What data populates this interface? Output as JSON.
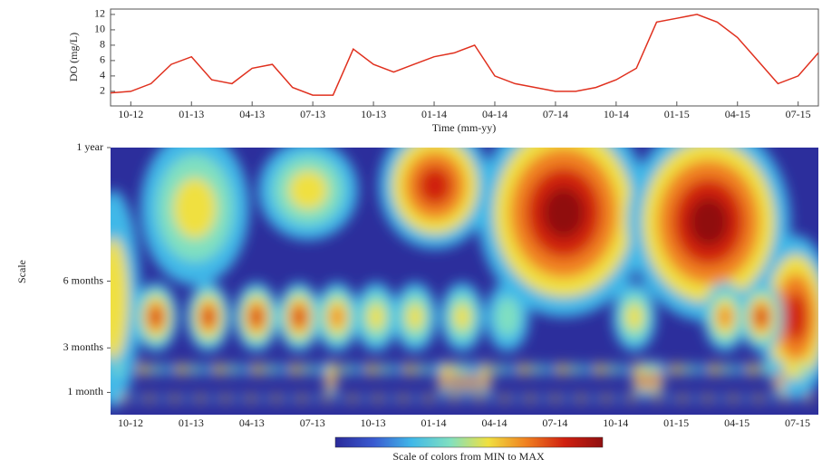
{
  "chart_data": [
    {
      "type": "line",
      "y_label": "DO (mg/L)",
      "x_label": "Time (mm-yy)",
      "categories": [
        "09-12",
        "10-12",
        "11-12",
        "12-12",
        "01-13",
        "02-13",
        "03-13",
        "04-13",
        "05-13",
        "06-13",
        "07-13",
        "08-13",
        "09-13",
        "10-13",
        "11-13",
        "12-13",
        "01-14",
        "02-14",
        "03-14",
        "04-14",
        "05-14",
        "06-14",
        "07-14",
        "08-14",
        "09-14",
        "10-14",
        "11-14",
        "12-14",
        "01-15",
        "02-15",
        "03-15",
        "04-15",
        "05-15",
        "06-15",
        "07-15",
        "08-15"
      ],
      "series": [
        {
          "color": "#e0301e",
          "values": [
            1.8,
            2,
            3,
            5.5,
            6.5,
            3.5,
            3,
            5,
            5.5,
            2.5,
            1.5,
            1.5,
            7.5,
            5.5,
            4.5,
            5.5,
            6.5,
            7,
            8,
            4,
            3,
            2.5,
            2,
            2,
            2.5,
            3.5,
            5,
            11,
            11.5,
            12,
            11,
            9,
            6,
            3,
            4,
            7
          ]
        }
      ],
      "ylim": [
        0.1,
        12.7
      ],
      "yticks": [
        2,
        4,
        6,
        8,
        10,
        12
      ],
      "xticks": [
        "10-12",
        "01-13",
        "04-13",
        "07-13",
        "10-13",
        "01-14",
        "04-14",
        "07-14",
        "10-14",
        "01-15",
        "04-15",
        "07-15"
      ]
    },
    {
      "type": "heatmap",
      "y_label": "Scale",
      "ylim": [
        0,
        12
      ],
      "yticks": [
        {
          "value": 12,
          "label": "1 year"
        },
        {
          "value": 6,
          "label": "6 months"
        },
        {
          "value": 3,
          "label": "3 months"
        },
        {
          "value": 1,
          "label": "1 month"
        }
      ],
      "xticks": [
        "10-12",
        "01-13",
        "04-13",
        "07-13",
        "10-13",
        "01-14",
        "04-14",
        "07-14",
        "10-14",
        "01-15",
        "04-15",
        "07-15"
      ],
      "colorbar_label": "Scale of colors from MIN to MAX",
      "colormap": [
        "#2a2a9a",
        "#3a5ad0",
        "#40b8e8",
        "#80e0c0",
        "#f0e040",
        "#f08020",
        "#d02010",
        "#901010"
      ]
    }
  ]
}
